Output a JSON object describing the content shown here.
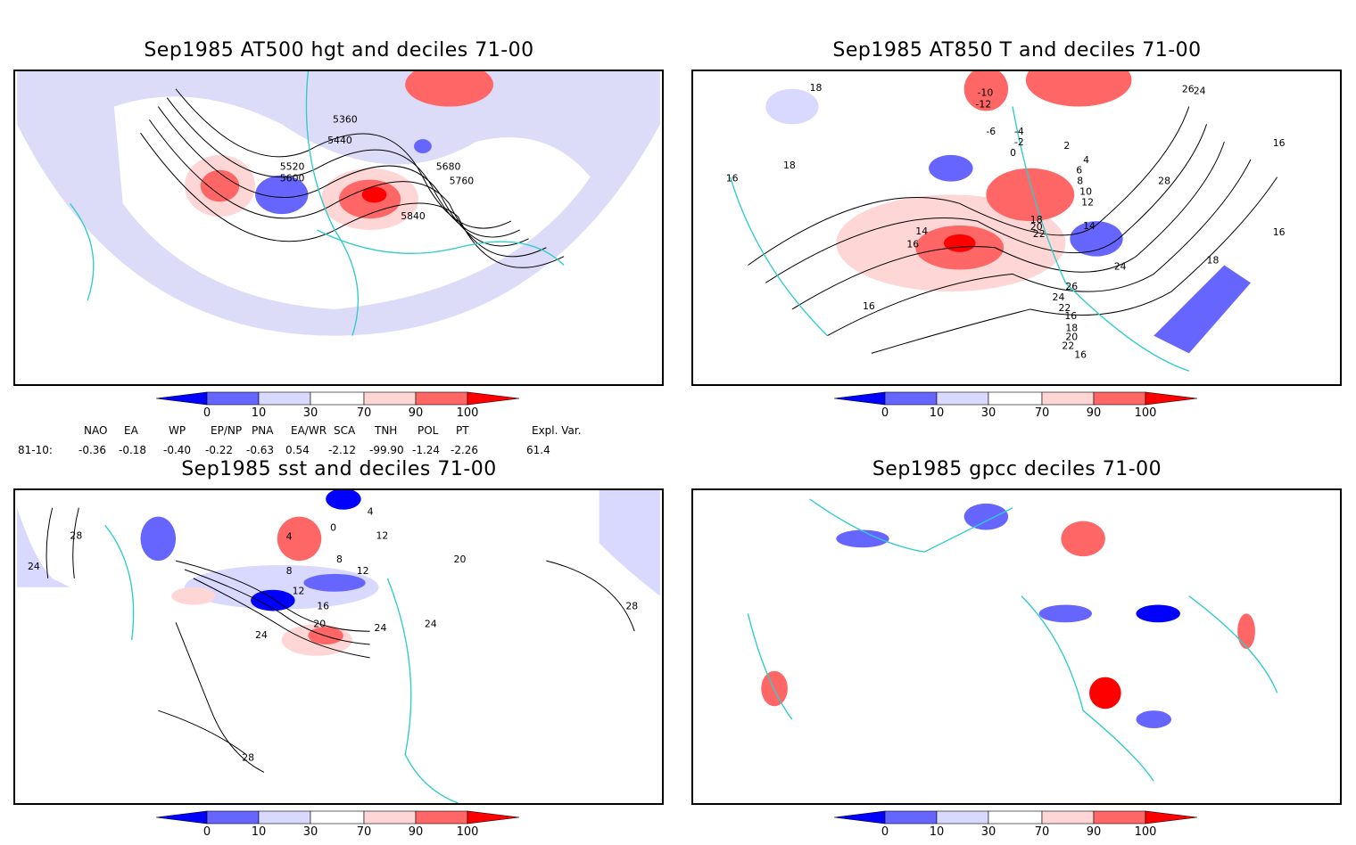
{
  "panels": {
    "p1": {
      "title": "Sep1985 AT500 hgt and deciles 71-00",
      "contour_labels": [
        "5360",
        "5440",
        "5520",
        "5600",
        "5680",
        "5760",
        "5840"
      ]
    },
    "p2": {
      "title": "Sep1985 AT850 T and deciles 71-00",
      "contour_labels": [
        "18",
        "16",
        "18",
        "14",
        "16",
        "18",
        "20",
        "22",
        "24",
        "26",
        "28",
        "24",
        "22",
        "26",
        "-10",
        "-12",
        "-6",
        "-4",
        "-2",
        "0",
        "2",
        "4",
        "6",
        "8",
        "10",
        "12",
        "14",
        "16",
        "18",
        "20",
        "22",
        "24",
        "16",
        "16",
        "16",
        "18",
        "16"
      ]
    },
    "p3": {
      "title": "Sep1985 sst and deciles 71-00",
      "contour_labels": [
        "28",
        "24",
        "0",
        "4",
        "8",
        "12",
        "16",
        "20",
        "24",
        "24",
        "24",
        "28",
        "20",
        "28",
        "4",
        "12",
        "12",
        "8"
      ]
    },
    "p4": {
      "title": "Sep1985 gpcc deciles 71-00",
      "contour_labels": []
    }
  },
  "colorbar": {
    "ticks": [
      "0",
      "10",
      "30",
      "70",
      "90",
      "100"
    ],
    "colors": [
      "#0000ff",
      "#6666ff",
      "#d9d9ff",
      "#ffffff",
      "#ffd6d6",
      "#ff6666",
      "#ff0000"
    ]
  },
  "indices": {
    "headers": [
      "NAO",
      "EA",
      "WP",
      "EP/NP",
      "PNA",
      "EA/WR",
      "SCA",
      "TNH",
      "POL",
      "PT",
      "Expl. Var."
    ],
    "row_label": "81-10:",
    "values": [
      "-0.36",
      "-0.18",
      "-0.40",
      "-0.22",
      "-0.63",
      "0.54",
      "-2.12",
      "-99.90",
      "-1.24",
      "-2.26",
      "61.4"
    ]
  }
}
